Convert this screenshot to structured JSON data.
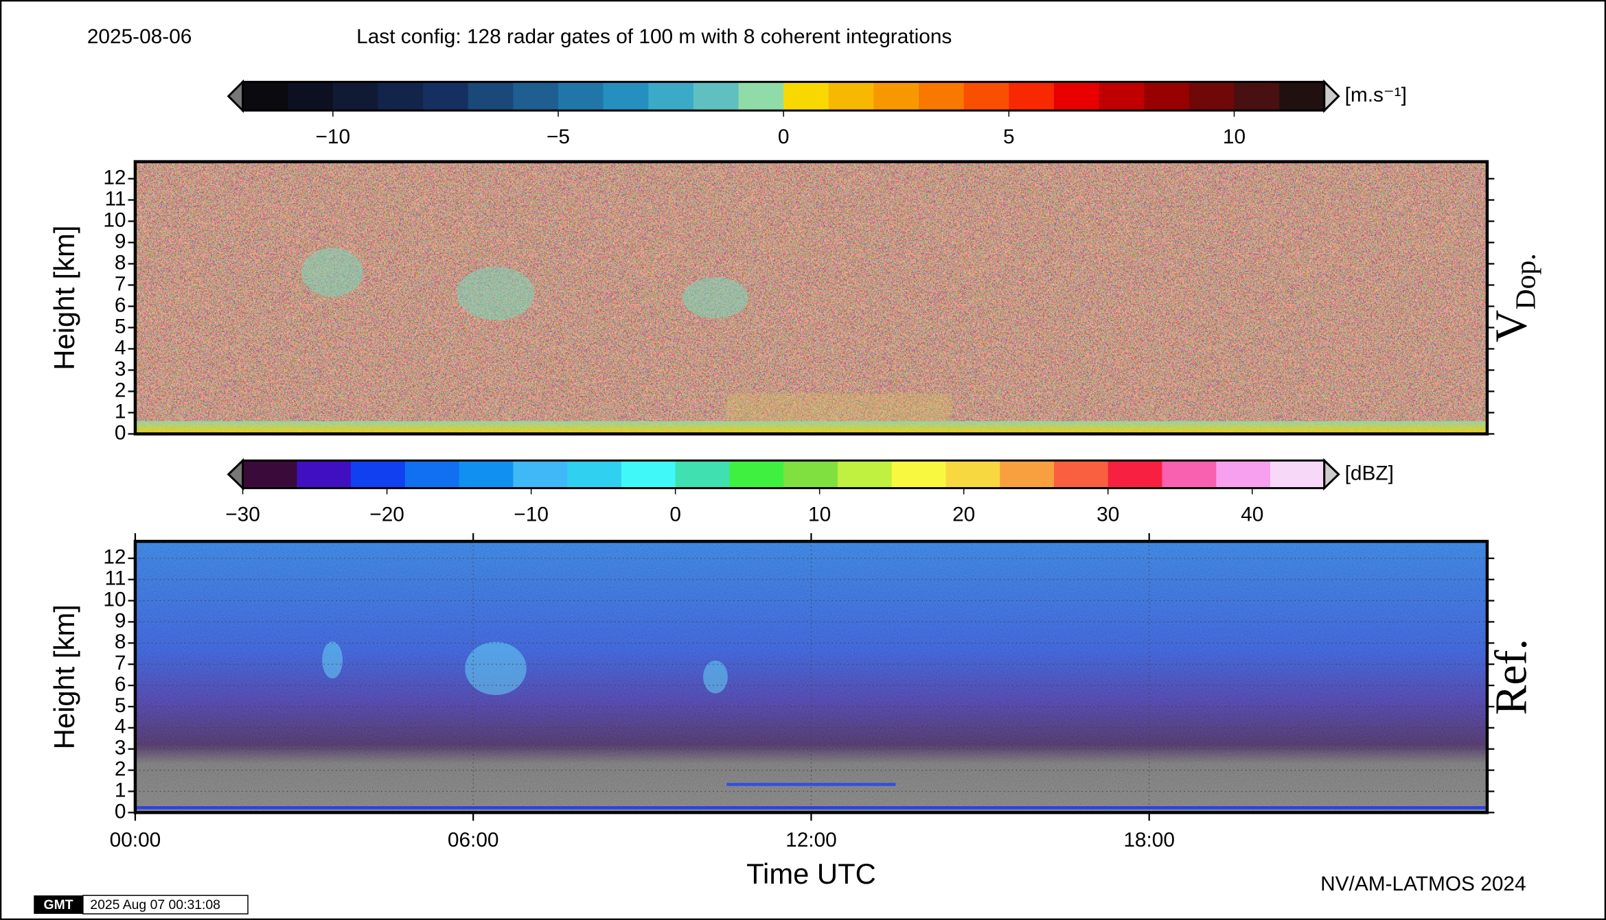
{
  "header": {
    "date": "2025-08-06",
    "config": "Last config: 128 radar gates of 100 m with 8 coherent integrations"
  },
  "chart_data": [
    {
      "type": "heatmap",
      "ylabel": "Height [km]",
      "side_label": {
        "main": "V",
        "sub": "Dop."
      },
      "xlim": [
        0,
        24
      ],
      "ylim": [
        0,
        12.8
      ],
      "yticks": [
        0,
        1,
        2,
        3,
        4,
        5,
        6,
        7,
        8,
        9,
        10,
        11,
        12
      ],
      "colorbar": {
        "label": "[m.s⁻¹]",
        "lim": [
          -12,
          12
        ],
        "ticks": [
          {
            "value": -10,
            "label": "−10"
          },
          {
            "value": -5,
            "label": "−5"
          },
          0,
          5,
          10
        ],
        "colors": [
          "#0a0a0f",
          "#0d1020",
          "#101a35",
          "#12244a",
          "#153060",
          "#1a4878",
          "#1e5e90",
          "#2176a8",
          "#2590c0",
          "#3aaac8",
          "#60c0c0",
          "#90dca8",
          "#f8d800",
          "#f8b800",
          "#f89800",
          "#f87800",
          "#f85000",
          "#f82800",
          "#e80000",
          "#c00000",
          "#980000",
          "#700808",
          "#481010",
          "#201010"
        ]
      }
    },
    {
      "type": "heatmap",
      "ylabel": "Height [km]",
      "side_label": {
        "main": "Ref."
      },
      "xlabel": "Time UTC",
      "xlim": [
        0,
        24
      ],
      "xticks": [
        {
          "value": 0,
          "label": "00:00"
        },
        {
          "value": 6,
          "label": "06:00"
        },
        {
          "value": 12,
          "label": "12:00"
        },
        {
          "value": 18,
          "label": "18:00"
        }
      ],
      "ylim": [
        0,
        12.8
      ],
      "yticks": [
        0,
        1,
        2,
        3,
        4,
        5,
        6,
        7,
        8,
        9,
        10,
        11,
        12
      ],
      "grid": true,
      "colorbar": {
        "label": "[dBZ]",
        "lim": [
          -30,
          45
        ],
        "ticks": [
          {
            "value": -30,
            "label": "−30"
          },
          {
            "value": -20,
            "label": "−20"
          },
          {
            "value": -10,
            "label": "−10"
          },
          0,
          10,
          20,
          30,
          40
        ],
        "colors": [
          "#3a0a3a",
          "#4010c0",
          "#1040f0",
          "#1070f0",
          "#1090f0",
          "#40b8f8",
          "#30d0f0",
          "#40f8f8",
          "#40e0b0",
          "#40f040",
          "#80e040",
          "#c0f040",
          "#f8f840",
          "#f8d840",
          "#f8a040",
          "#f86040",
          "#f82040",
          "#f860b0",
          "#f8a0f0",
          "#f8d8f8"
        ]
      }
    }
  ],
  "footer": {
    "credit": "NV/AM-LATMOS 2024",
    "logo": "GMT",
    "timestamp": "2025 Aug 07 00:31:08"
  }
}
